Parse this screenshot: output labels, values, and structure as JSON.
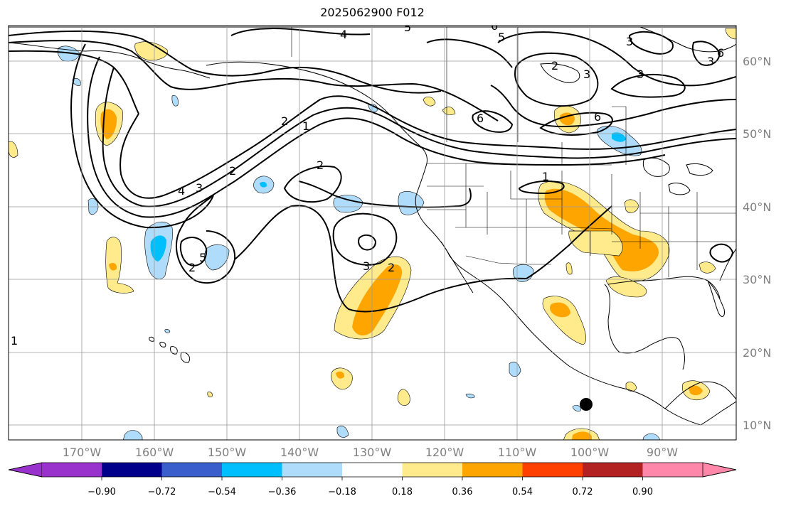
{
  "title": "2025062900 F012",
  "map": {
    "lat_labels": [
      "60°N",
      "50°N",
      "40°N",
      "30°N",
      "20°N",
      "10°N"
    ],
    "lon_labels": [
      "170°W",
      "160°W",
      "150°W",
      "140°W",
      "130°W",
      "120°W",
      "110°W",
      "100°W",
      "90°W"
    ],
    "contour_labels": [
      "4",
      "5",
      "6",
      "5",
      "3",
      "2",
      "1",
      "6",
      "4",
      "3",
      "2",
      "2",
      "2",
      "1",
      "3",
      "2",
      "5",
      "1",
      "2",
      "3",
      "6",
      "3",
      "3",
      "6"
    ]
  },
  "colorbar": {
    "ticks": [
      "−0.90",
      "−0.72",
      "−0.54",
      "−0.36",
      "−0.18",
      "0.18",
      "0.36",
      "0.54",
      "0.72",
      "0.90"
    ],
    "colors": [
      "#9932cc",
      "#00008b",
      "#3a5fcd",
      "#00bfff",
      "#afdcfa",
      "#ffffff",
      "#ffeb8c",
      "#ffa500",
      "#ff4000",
      "#b22222",
      "#ff88aa"
    ]
  },
  "colors": {
    "land_lines": "#000000",
    "grid": "#9a9a9a",
    "pos_light": "#ffeb8c",
    "pos_mid": "#ffa500",
    "neg_light": "#afdcfa",
    "neg_mid": "#00bfff"
  }
}
